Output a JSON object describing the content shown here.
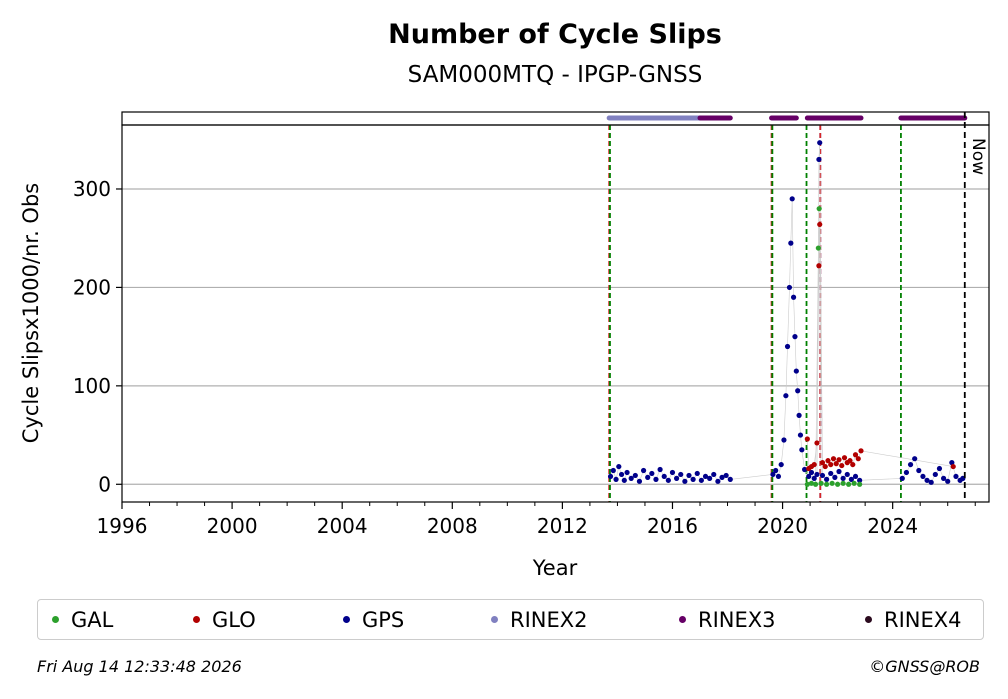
{
  "chart_data": {
    "type": "scatter",
    "title": "Number of Cycle Slips",
    "subtitle": "SAM000MTQ - IPGP-GNSS",
    "xlabel": "Year",
    "ylabel": "Cycle Slipsx1000/nr. Obs",
    "xlim": [
      1996,
      2027.5
    ],
    "ylim": [
      -18,
      365
    ],
    "xticks": [
      1996,
      2000,
      2004,
      2008,
      2012,
      2016,
      2020,
      2024
    ],
    "yticks": [
      0,
      100,
      200,
      300
    ],
    "grid": "horizontal",
    "now_label": "Now",
    "now_year": 2026.62,
    "vlines": [
      {
        "x": 2013.7,
        "color": "#d62728"
      },
      {
        "x": 2013.7,
        "color": "#008000"
      },
      {
        "x": 2019.6,
        "color": "#d62728"
      },
      {
        "x": 2019.6,
        "color": "#008000"
      },
      {
        "x": 2020.87,
        "color": "#008000"
      },
      {
        "x": 2021.37,
        "color": "#4169e1"
      },
      {
        "x": 2021.37,
        "color": "#d62728"
      },
      {
        "x": 2024.3,
        "color": "#008000"
      }
    ],
    "format_strip": [
      {
        "format": "RINEX2",
        "start": 2013.7,
        "end": 2017.0
      },
      {
        "format": "RINEX3",
        "start": 2017.0,
        "end": 2018.1
      },
      {
        "format": "RINEX3",
        "start": 2019.6,
        "end": 2020.5
      },
      {
        "format": "RINEX3",
        "start": 2020.9,
        "end": 2022.85
      },
      {
        "format": "RINEX3",
        "start": 2024.3,
        "end": 2026.62
      }
    ],
    "series": [
      {
        "name": "GPS",
        "color": "#00008b",
        "points": [
          [
            2013.75,
            8
          ],
          [
            2013.85,
            14
          ],
          [
            2013.95,
            5
          ],
          [
            2014.05,
            18
          ],
          [
            2014.15,
            10
          ],
          [
            2014.25,
            4
          ],
          [
            2014.35,
            12
          ],
          [
            2014.5,
            6
          ],
          [
            2014.65,
            9
          ],
          [
            2014.8,
            3
          ],
          [
            2014.95,
            14
          ],
          [
            2015.1,
            7
          ],
          [
            2015.25,
            11
          ],
          [
            2015.4,
            5
          ],
          [
            2015.55,
            15
          ],
          [
            2015.7,
            8
          ],
          [
            2015.85,
            4
          ],
          [
            2016.0,
            12
          ],
          [
            2016.15,
            6
          ],
          [
            2016.3,
            10
          ],
          [
            2016.45,
            3
          ],
          [
            2016.6,
            9
          ],
          [
            2016.75,
            5
          ],
          [
            2016.9,
            11
          ],
          [
            2017.05,
            4
          ],
          [
            2017.2,
            8
          ],
          [
            2017.35,
            6
          ],
          [
            2017.5,
            10
          ],
          [
            2017.65,
            3
          ],
          [
            2017.8,
            7
          ],
          [
            2017.95,
            9
          ],
          [
            2018.1,
            5
          ],
          [
            2019.65,
            10
          ],
          [
            2019.75,
            14
          ],
          [
            2019.85,
            8
          ],
          [
            2019.95,
            20
          ],
          [
            2020.05,
            45
          ],
          [
            2020.12,
            90
          ],
          [
            2020.18,
            140
          ],
          [
            2020.25,
            200
          ],
          [
            2020.3,
            245
          ],
          [
            2020.35,
            290
          ],
          [
            2020.4,
            190
          ],
          [
            2020.45,
            150
          ],
          [
            2020.5,
            115
          ],
          [
            2020.55,
            95
          ],
          [
            2020.6,
            70
          ],
          [
            2020.65,
            50
          ],
          [
            2020.7,
            35
          ],
          [
            2020.8,
            15
          ],
          [
            2020.95,
            8
          ],
          [
            2021.05,
            12
          ],
          [
            2021.15,
            6
          ],
          [
            2021.25,
            10
          ],
          [
            2021.32,
            330
          ],
          [
            2021.35,
            347
          ],
          [
            2021.45,
            9
          ],
          [
            2021.6,
            5
          ],
          [
            2021.75,
            11
          ],
          [
            2021.9,
            7
          ],
          [
            2022.05,
            13
          ],
          [
            2022.2,
            6
          ],
          [
            2022.35,
            10
          ],
          [
            2022.5,
            5
          ],
          [
            2022.65,
            8
          ],
          [
            2022.8,
            4
          ],
          [
            2024.35,
            6
          ],
          [
            2024.5,
            12
          ],
          [
            2024.65,
            20
          ],
          [
            2024.8,
            26
          ],
          [
            2024.95,
            14
          ],
          [
            2025.1,
            8
          ],
          [
            2025.25,
            4
          ],
          [
            2025.4,
            2
          ],
          [
            2025.55,
            10
          ],
          [
            2025.7,
            16
          ],
          [
            2025.85,
            6
          ],
          [
            2026.0,
            3
          ],
          [
            2026.15,
            22
          ],
          [
            2026.3,
            8
          ],
          [
            2026.45,
            4
          ],
          [
            2026.55,
            6
          ]
        ]
      },
      {
        "name": "GLO",
        "color": "#b20000",
        "points": [
          [
            2020.9,
            46
          ],
          [
            2020.95,
            16
          ],
          [
            2021.05,
            18
          ],
          [
            2021.15,
            20
          ],
          [
            2021.25,
            42
          ],
          [
            2021.32,
            222
          ],
          [
            2021.35,
            264
          ],
          [
            2021.45,
            22
          ],
          [
            2021.55,
            18
          ],
          [
            2021.65,
            24
          ],
          [
            2021.75,
            20
          ],
          [
            2021.85,
            26
          ],
          [
            2021.95,
            21
          ],
          [
            2022.05,
            25
          ],
          [
            2022.15,
            19
          ],
          [
            2022.25,
            27
          ],
          [
            2022.35,
            22
          ],
          [
            2022.45,
            24
          ],
          [
            2022.55,
            20
          ],
          [
            2022.65,
            30
          ],
          [
            2022.75,
            26
          ],
          [
            2022.85,
            34
          ],
          [
            2026.2,
            18
          ]
        ]
      },
      {
        "name": "GAL",
        "color": "#2ca02c",
        "points": [
          [
            2020.9,
            0
          ],
          [
            2021.05,
            1
          ],
          [
            2021.2,
            0
          ],
          [
            2021.3,
            240
          ],
          [
            2021.33,
            280
          ],
          [
            2021.4,
            1
          ],
          [
            2021.6,
            0
          ],
          [
            2021.8,
            1
          ],
          [
            2022.0,
            0
          ],
          [
            2022.2,
            1
          ],
          [
            2022.4,
            0
          ],
          [
            2022.6,
            1
          ],
          [
            2022.8,
            0
          ]
        ]
      }
    ]
  },
  "legend": [
    {
      "label": "GAL",
      "color": "#2ca02c"
    },
    {
      "label": "GLO",
      "color": "#b20000"
    },
    {
      "label": "GPS",
      "color": "#00008b"
    },
    {
      "label": "RINEX2",
      "color": "#8080c0"
    },
    {
      "label": "RINEX3",
      "color": "#660066"
    },
    {
      "label": "RINEX4",
      "color": "#2b0a1e"
    }
  ],
  "footer": {
    "timestamp": "Fri Aug 14 12:33:48 2026",
    "copyright": "©GNSS@ROB"
  }
}
